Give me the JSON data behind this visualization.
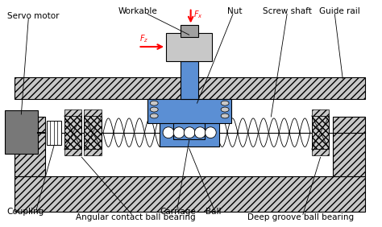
{
  "title": "",
  "background_color": "#ffffff",
  "labels": {
    "servo_motor": "Servo motor",
    "workable": "Workable",
    "fx": "$F_x$",
    "fz": "$F_z$",
    "nut": "Nut",
    "screw_shaft": "Screw shaft",
    "guide_rail": "Guide rail",
    "coupling": "Coupling",
    "angular_bearing": "Angular contact ball bearing",
    "carriage": "Carriage",
    "ball": "Ball",
    "deep_bearing": "Deep groove ball bearing"
  },
  "colors": {
    "blue": "#5B8FD4",
    "gray": "#808080",
    "gray_light": "#C8C8C8",
    "gray_mid": "#A0A0A0",
    "black": "#000000",
    "white": "#FFFFFF",
    "red": "#FF0000",
    "motor_gray": "#787878"
  },
  "figsize": [
    4.74,
    2.82
  ],
  "dpi": 100
}
